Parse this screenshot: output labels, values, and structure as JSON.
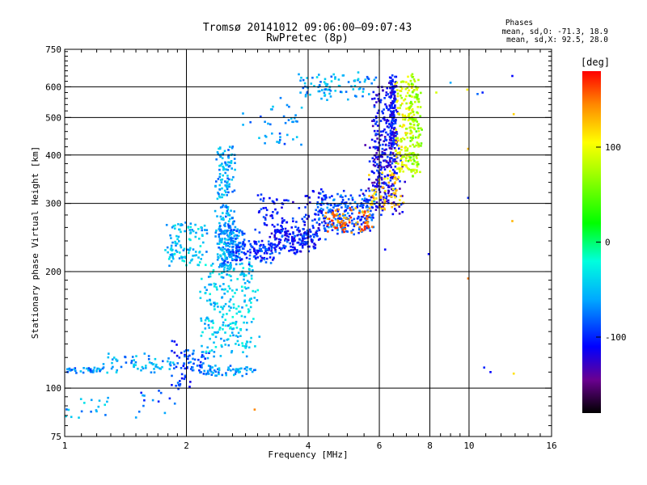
{
  "chart_data": {
    "type": "scatter",
    "title": "Tromsø 20141012 09:06:00–09:07:43",
    "subtitle": "RwPretec (8p)",
    "xlabel": "Frequency [MHz]",
    "ylabel": "Stationary phase Virtual Height [km]",
    "x_scale": "log",
    "y_scale": "log",
    "xlim": [
      1,
      16
    ],
    "ylim": [
      75,
      750
    ],
    "grid": true,
    "x_ticks": [
      1,
      2,
      4,
      6,
      8,
      10,
      16
    ],
    "x_tick_labels": [
      "1",
      "2",
      "4",
      "6",
      "8",
      "10",
      "16"
    ],
    "x_grid": [
      2,
      4,
      6,
      8,
      10
    ],
    "x_minor_ticks": [
      1.1,
      1.2,
      1.3,
      1.4,
      1.5,
      1.6,
      1.7,
      1.8,
      1.9,
      2.2,
      2.4,
      2.6,
      2.8,
      3,
      3.2,
      3.4,
      3.6,
      3.8,
      4.5,
      5,
      5.5,
      6.5,
      7,
      7.5,
      8.5,
      9,
      9.5,
      11,
      12,
      13,
      14,
      15
    ],
    "y_ticks": [
      75,
      100,
      200,
      300,
      400,
      500,
      600,
      750
    ],
    "y_tick_labels": [
      "75",
      "100",
      "200",
      "300",
      "400",
      "500",
      "600",
      "750"
    ],
    "y_grid": [
      100,
      200,
      300,
      400,
      500,
      600
    ],
    "y_minor_ticks": [
      80,
      85,
      90,
      95,
      110,
      120,
      130,
      140,
      150,
      160,
      170,
      180,
      190,
      220,
      240,
      260,
      280,
      320,
      340,
      360,
      380,
      420,
      440,
      460,
      480,
      520,
      540,
      560,
      580,
      620,
      640,
      660,
      680,
      700,
      720,
      740
    ],
    "legend": {
      "title": "Phases",
      "lines": [
        "mean, sd,O: -71.3, 18.9",
        "mean, sd,X: 92.5, 28.0"
      ],
      "placement": "top-right"
    },
    "colorbar": {
      "title": "[deg]",
      "range": [
        -180,
        180
      ],
      "ticks": [
        100,
        0,
        -100
      ],
      "tick_labels": [
        "100",
        "0",
        "-100"
      ],
      "stops": [
        {
          "v": -180,
          "color": "#000000"
        },
        {
          "v": -145,
          "color": "#6a0090"
        },
        {
          "v": -110,
          "color": "#0000ff"
        },
        {
          "v": -60,
          "color": "#00aaff"
        },
        {
          "v": -20,
          "color": "#00ffdd"
        },
        {
          "v": 20,
          "color": "#00ff00"
        },
        {
          "v": 75,
          "color": "#aaff00"
        },
        {
          "v": 105,
          "color": "#ffff00"
        },
        {
          "v": 145,
          "color": "#ff8800"
        },
        {
          "v": 180,
          "color": "#ff0000"
        }
      ]
    },
    "series": [
      {
        "traces": [
          {
            "xr": [
              1.0,
              1.25
            ],
            "yr": [
              110,
              113
            ],
            "phase": -70,
            "n": 40,
            "j": 0.012
          },
          {
            "xr": [
              1.0,
              1.3
            ],
            "yr": [
              82,
              96
            ],
            "phase": -55,
            "n": 18,
            "j": 0.03
          },
          {
            "xr": [
              1.25,
              1.9
            ],
            "yr": [
              110,
              122
            ],
            "phase": -60,
            "n": 60,
            "j": 0.02
          },
          {
            "xr": [
              1.5,
              1.95
            ],
            "yr": [
              85,
              100
            ],
            "phase": -80,
            "n": 14,
            "j": 0.04
          },
          {
            "xr": [
              1.85,
              2.05
            ],
            "yr": [
              100,
              130
            ],
            "phase": -95,
            "n": 40,
            "j": 0.04
          },
          {
            "xr": [
              2.0,
              2.25
            ],
            "yr": [
              110,
              125
            ],
            "phase": -85,
            "n": 35,
            "j": 0.03
          },
          {
            "xr": [
              2.2,
              2.95
            ],
            "yr": [
              108,
              114
            ],
            "phase": -60,
            "n": 60,
            "j": 0.015
          },
          {
            "xr": [
              2.2,
              2.95
            ],
            "yr": [
              120,
              210
            ],
            "phase": -45,
            "n": 240,
            "j": 0.06
          },
          {
            "xr": [
              2.4,
              2.6
            ],
            "yr": [
              200,
              420
            ],
            "phase": -60,
            "n": 260,
            "j": 0.05
          },
          {
            "xr": [
              2.5,
              2.75
            ],
            "yr": [
              210,
              260
            ],
            "phase": -75,
            "n": 90,
            "j": 0.04
          },
          {
            "xr": [
              1.8,
              2.2
            ],
            "yr": [
              210,
              265
            ],
            "phase": -50,
            "n": 110,
            "j": 0.05
          },
          {
            "xr": [
              2.7,
              3.3
            ],
            "yr": [
              212,
              240
            ],
            "phase": -95,
            "n": 100,
            "j": 0.04
          },
          {
            "xr": [
              3.3,
              4.2
            ],
            "yr": [
              225,
              258
            ],
            "phase": -100,
            "n": 150,
            "j": 0.04
          },
          {
            "xr": [
              4.2,
              5.8
            ],
            "yr": [
              250,
              320
            ],
            "phase": -85,
            "n": 220,
            "j": 0.04
          },
          {
            "xr": [
              5.8,
              6.6
            ],
            "yr": [
              320,
              600
            ],
            "phase": -110,
            "n": 200,
            "j": 0.03
          },
          {
            "xr": [
              5.6,
              6.8
            ],
            "yr": [
              280,
              420
            ],
            "phase": -115,
            "n": 120,
            "j": 0.05
          },
          {
            "xr": [
              6.4,
              6.6
            ],
            "yr": [
              420,
              640
            ],
            "phase": -110,
            "n": 150,
            "j": 0.02
          },
          {
            "xr": [
              3.0,
              4.5
            ],
            "yr": [
              240,
              320
            ],
            "phase": -105,
            "n": 120,
            "j": 0.06
          },
          {
            "xr": [
              2.8,
              3.8
            ],
            "yr": [
              420,
              560
            ],
            "phase": -70,
            "n": 40,
            "j": 0.05
          },
          {
            "xr": [
              3.8,
              5.8
            ],
            "yr": [
              560,
              640
            ],
            "phase": -60,
            "n": 90,
            "j": 0.05
          },
          {
            "xr": [
              4.4,
              5.7
            ],
            "yr": [
              255,
              290
            ],
            "phase": 150,
            "n": 80,
            "j": 0.03
          },
          {
            "xr": [
              5.7,
              6.8
            ],
            "yr": [
              290,
              360
            ],
            "phase": 120,
            "n": 60,
            "j": 0.03
          },
          {
            "xr": [
              6.6,
              7.3
            ],
            "yr": [
              360,
              640
            ],
            "phase": 95,
            "n": 150,
            "j": 0.02
          },
          {
            "xr": [
              7.1,
              7.6
            ],
            "yr": [
              350,
              650
            ],
            "phase": 70,
            "n": 120,
            "j": 0.02
          }
        ]
      },
      {
        "points": [
          {
            "x": 9.0,
            "y": 615,
            "phase": -60
          },
          {
            "x": 9.9,
            "y": 590,
            "phase": 110
          },
          {
            "x": 10.5,
            "y": 575,
            "phase": -80
          },
          {
            "x": 10.8,
            "y": 580,
            "phase": -100
          },
          {
            "x": 12.8,
            "y": 640,
            "phase": -110
          },
          {
            "x": 12.9,
            "y": 510,
            "phase": 120
          },
          {
            "x": 12.8,
            "y": 270,
            "phase": 130
          },
          {
            "x": 12.9,
            "y": 109,
            "phase": 115
          },
          {
            "x": 11.3,
            "y": 110,
            "phase": -110
          },
          {
            "x": 10.9,
            "y": 113,
            "phase": -100
          },
          {
            "x": 9.95,
            "y": 310,
            "phase": -100
          },
          {
            "x": 9.95,
            "y": 415,
            "phase": 130
          },
          {
            "x": 9.95,
            "y": 192,
            "phase": 150
          },
          {
            "x": 7.95,
            "y": 222,
            "phase": -110
          },
          {
            "x": 6.2,
            "y": 228,
            "phase": -110
          },
          {
            "x": 2.95,
            "y": 88,
            "phase": 145
          },
          {
            "x": 8.3,
            "y": 580,
            "phase": 90
          }
        ]
      }
    ]
  }
}
